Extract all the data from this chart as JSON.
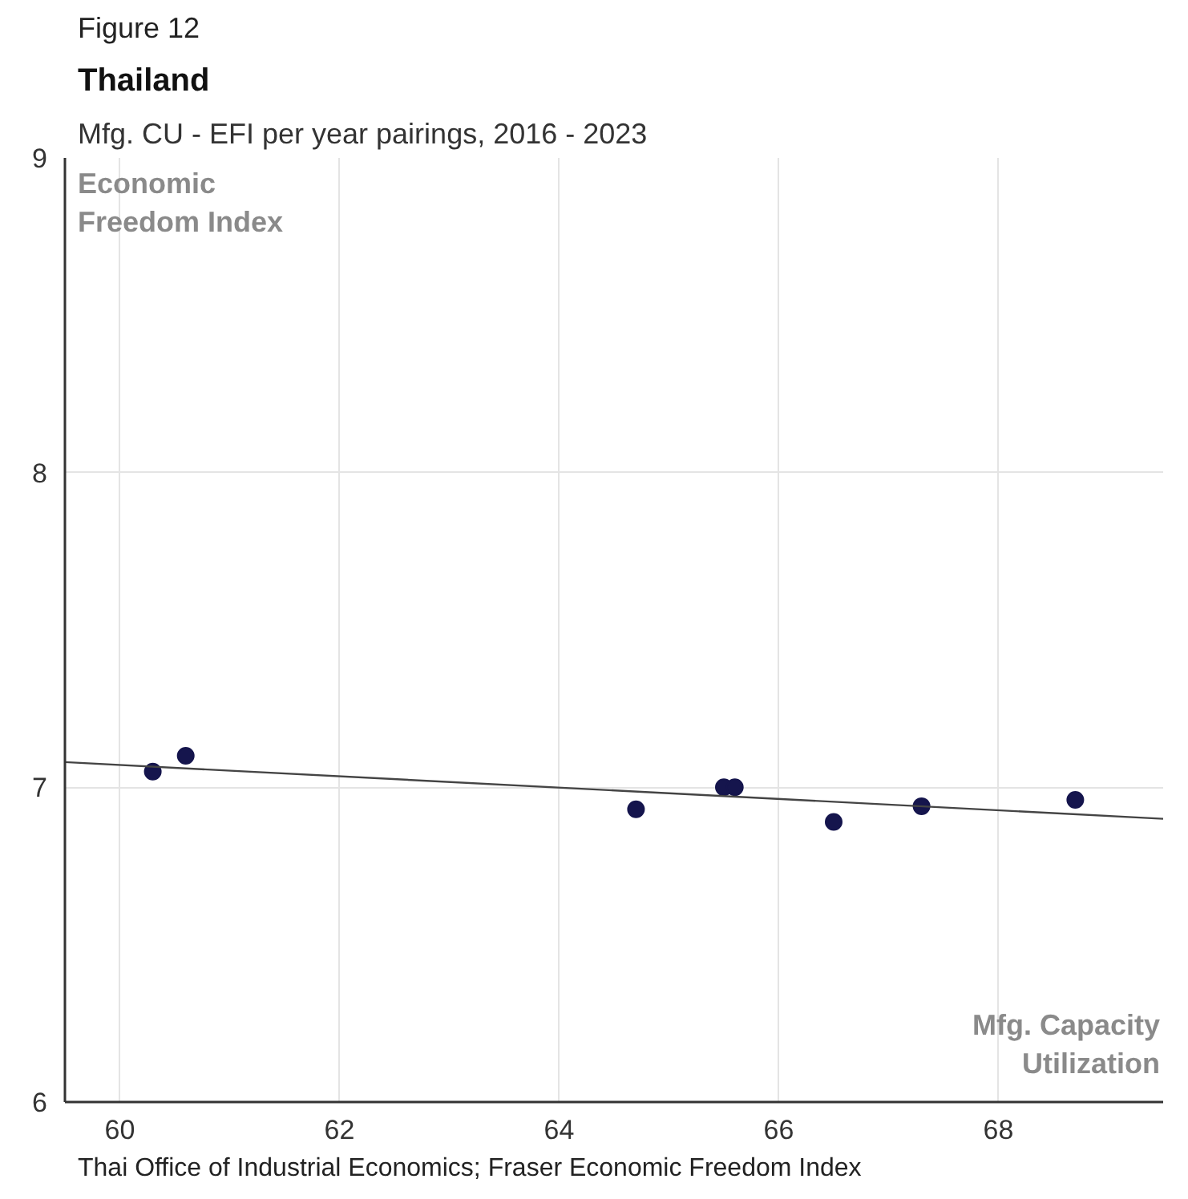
{
  "chart_data": {
    "type": "scatter",
    "title": "Thailand",
    "subtitle": "Mfg. CU - EFI per year pairings, 2016 - 2023",
    "xlabel": "Mfg. Capacity Utilization",
    "ylabel": "Economic Freedom Index",
    "annotations": [
      "Figure 12",
      "Thai Office of Industrial Economics; Fraser Economic Freedom Index"
    ],
    "series": [
      {
        "marker": "circle",
        "color": "#15154d",
        "x": [
          60.3,
          60.6,
          64.7,
          65.5,
          65.6,
          66.5,
          67.3,
          68.7
        ],
        "values": [
          7.05,
          7.1,
          6.93,
          7.0,
          7.0,
          6.89,
          6.94,
          6.96
        ]
      },
      {
        "type": "line",
        "color": "#444444",
        "x": [
          59.5,
          69.5
        ],
        "values": [
          7.08,
          6.9
        ]
      }
    ],
    "xlim": [
      59.5,
      69.5
    ],
    "ylim": [
      6,
      9
    ],
    "xticks": [
      60,
      62,
      64,
      66,
      68
    ],
    "yticks": [
      6,
      7,
      8,
      9
    ],
    "grid": true,
    "line_style": "solid"
  }
}
